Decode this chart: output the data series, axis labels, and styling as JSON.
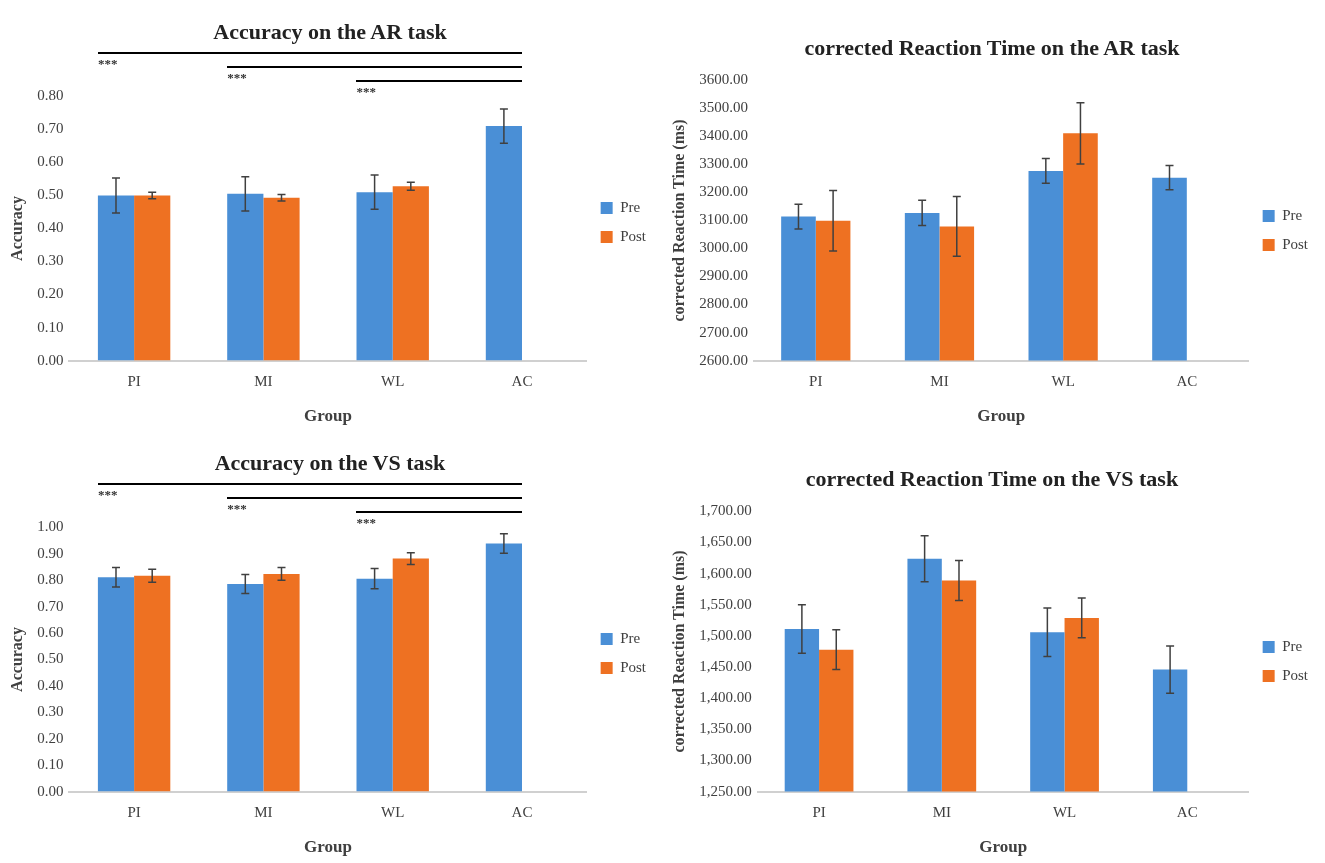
{
  "chart_data": [
    {
      "type": "bar",
      "title": "Accuracy on the AR task",
      "xlabel": "Group",
      "ylabel": "Accuracy",
      "categories": [
        "PI",
        "MI",
        "WL",
        "AC"
      ],
      "series": [
        {
          "name": "Pre",
          "color": "#4a8fd6",
          "values": [
            0.5,
            0.505,
            0.51,
            0.71
          ],
          "errors": [
            0.053,
            0.052,
            0.052,
            0.052
          ]
        },
        {
          "name": "Post",
          "color": "#ee7122",
          "values": [
            0.5,
            0.493,
            0.528,
            null
          ],
          "errors": [
            0.01,
            0.01,
            0.012,
            null
          ]
        }
      ],
      "ylim": [
        0,
        0.8
      ],
      "yticks": [
        {
          "value": 0,
          "label": "0.00"
        },
        {
          "value": 0.1,
          "label": "0.10"
        },
        {
          "value": 0.2,
          "label": "0.20"
        },
        {
          "value": 0.3,
          "label": "0.30"
        },
        {
          "value": 0.4,
          "label": "0.40"
        },
        {
          "value": 0.5,
          "label": "0.50"
        },
        {
          "value": 0.6,
          "label": "0.60"
        },
        {
          "value": 0.7,
          "label": "0.70"
        },
        {
          "value": 0.8,
          "label": "0.80"
        }
      ],
      "legend": "right",
      "annotations": [
        "***",
        "***",
        "***"
      ]
    },
    {
      "type": "bar",
      "title": "corrected Reaction Time on the AR task",
      "xlabel": "Group",
      "ylabel": "corrected Reaction Time (ms)",
      "categories": [
        "PI",
        "MI",
        "WL",
        "AC"
      ],
      "series": [
        {
          "name": "Pre",
          "color": "#4a8fd6",
          "values": [
            3114,
            3127,
            3277,
            3253
          ],
          "errors": [
            44,
            45,
            44,
            43
          ]
        },
        {
          "name": "Post",
          "color": "#ee7122",
          "values": [
            3099,
            3079,
            3411,
            null
          ],
          "errors": [
            108,
            107,
            109,
            null
          ]
        }
      ],
      "ylim": [
        2600,
        3600
      ],
      "yticks": [
        {
          "value": 2600,
          "label": "2600.00"
        },
        {
          "value": 2700,
          "label": "2700.00"
        },
        {
          "value": 2800,
          "label": "2800.00"
        },
        {
          "value": 2900,
          "label": "2900.00"
        },
        {
          "value": 3000,
          "label": "3000.00"
        },
        {
          "value": 3100,
          "label": "3100.00"
        },
        {
          "value": 3200,
          "label": "3200.00"
        },
        {
          "value": 3300,
          "label": "3300.00"
        },
        {
          "value": 3400,
          "label": "3400.00"
        },
        {
          "value": 3500,
          "label": "3500.00"
        },
        {
          "value": 3600,
          "label": "3600.00"
        }
      ],
      "legend": "right"
    },
    {
      "type": "bar",
      "title": "Accuracy on the VS task",
      "xlabel": "Group",
      "ylabel": "Accuracy",
      "categories": [
        "PI",
        "MI",
        "WL",
        "AC"
      ],
      "series": [
        {
          "name": "Pre",
          "color": "#4a8fd6",
          "values": [
            0.811,
            0.786,
            0.806,
            0.939
          ],
          "errors": [
            0.037,
            0.036,
            0.038,
            0.037
          ]
        },
        {
          "name": "Post",
          "color": "#ee7122",
          "values": [
            0.817,
            0.824,
            0.882,
            null
          ],
          "errors": [
            0.025,
            0.024,
            0.022,
            null
          ]
        }
      ],
      "ylim": [
        0,
        1
      ],
      "yticks": [
        {
          "value": 0,
          "label": "0.00"
        },
        {
          "value": 0.1,
          "label": "0.10"
        },
        {
          "value": 0.2,
          "label": "0.20"
        },
        {
          "value": 0.3,
          "label": "0.30"
        },
        {
          "value": 0.4,
          "label": "0.40"
        },
        {
          "value": 0.5,
          "label": "0.50"
        },
        {
          "value": 0.6,
          "label": "0.60"
        },
        {
          "value": 0.7,
          "label": "0.70"
        },
        {
          "value": 0.8,
          "label": "0.80"
        },
        {
          "value": 0.9,
          "label": "0.90"
        },
        {
          "value": 1,
          "label": "1.00"
        }
      ],
      "legend": "right",
      "annotations": [
        "***",
        "***",
        "***"
      ]
    },
    {
      "type": "bar",
      "title": "corrected Reaction Time on the VS task",
      "xlabel": "Group",
      "ylabel": "corrected Reaction Time (ms)",
      "categories": [
        "PI",
        "MI",
        "WL",
        "AC"
      ],
      "series": [
        {
          "name": "Pre",
          "color": "#4a8fd6",
          "values": [
            1511,
            1624,
            1506,
            1446
          ],
          "errors": [
            39,
            37,
            39,
            38
          ]
        },
        {
          "name": "Post",
          "color": "#ee7122",
          "values": [
            1478,
            1589,
            1529,
            null
          ],
          "errors": [
            32,
            32,
            32,
            null
          ]
        }
      ],
      "ylim": [
        1250,
        1700
      ],
      "yticks": [
        {
          "value": 1250,
          "label": "1,250.00"
        },
        {
          "value": 1300,
          "label": "1,300.00"
        },
        {
          "value": 1350,
          "label": "1,350.00"
        },
        {
          "value": 1400,
          "label": "1,400.00"
        },
        {
          "value": 1450,
          "label": "1,450.00"
        },
        {
          "value": 1500,
          "label": "1,500.00"
        },
        {
          "value": 1550,
          "label": "1,550.00"
        },
        {
          "value": 1600,
          "label": "1,600.00"
        },
        {
          "value": 1650,
          "label": "1,650.00"
        },
        {
          "value": 1700,
          "label": "1,700.00"
        }
      ],
      "legend": "right"
    }
  ]
}
